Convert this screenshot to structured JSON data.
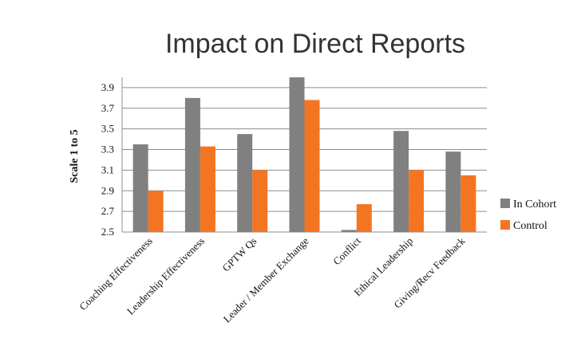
{
  "chart_data": {
    "type": "bar",
    "title": "Impact on Direct Reports",
    "ylabel": "Scale 1 to 5",
    "xlabel": "",
    "ylim": [
      2.5,
      4.0
    ],
    "yticks": [
      "2.5",
      "2.7",
      "2.9",
      "3.1",
      "3.3",
      "3.5",
      "3.7",
      "3.9"
    ],
    "grid": true,
    "legend_position": "right",
    "categories": [
      "Coaching Effectiveness",
      "Leadership Effectiveness",
      "GPTW Qs",
      "Leader / Member Exchange",
      "Conflict",
      "Ethical Leadership",
      "Giving/Recv Feedback"
    ],
    "series": [
      {
        "name": "In Cohort",
        "color": "#808080",
        "values": [
          3.35,
          3.8,
          3.45,
          4.0,
          2.52,
          3.48,
          3.28
        ]
      },
      {
        "name": "Control",
        "color": "#f47521",
        "values": [
          2.9,
          3.33,
          3.1,
          3.78,
          2.77,
          3.1,
          3.05
        ]
      }
    ]
  }
}
